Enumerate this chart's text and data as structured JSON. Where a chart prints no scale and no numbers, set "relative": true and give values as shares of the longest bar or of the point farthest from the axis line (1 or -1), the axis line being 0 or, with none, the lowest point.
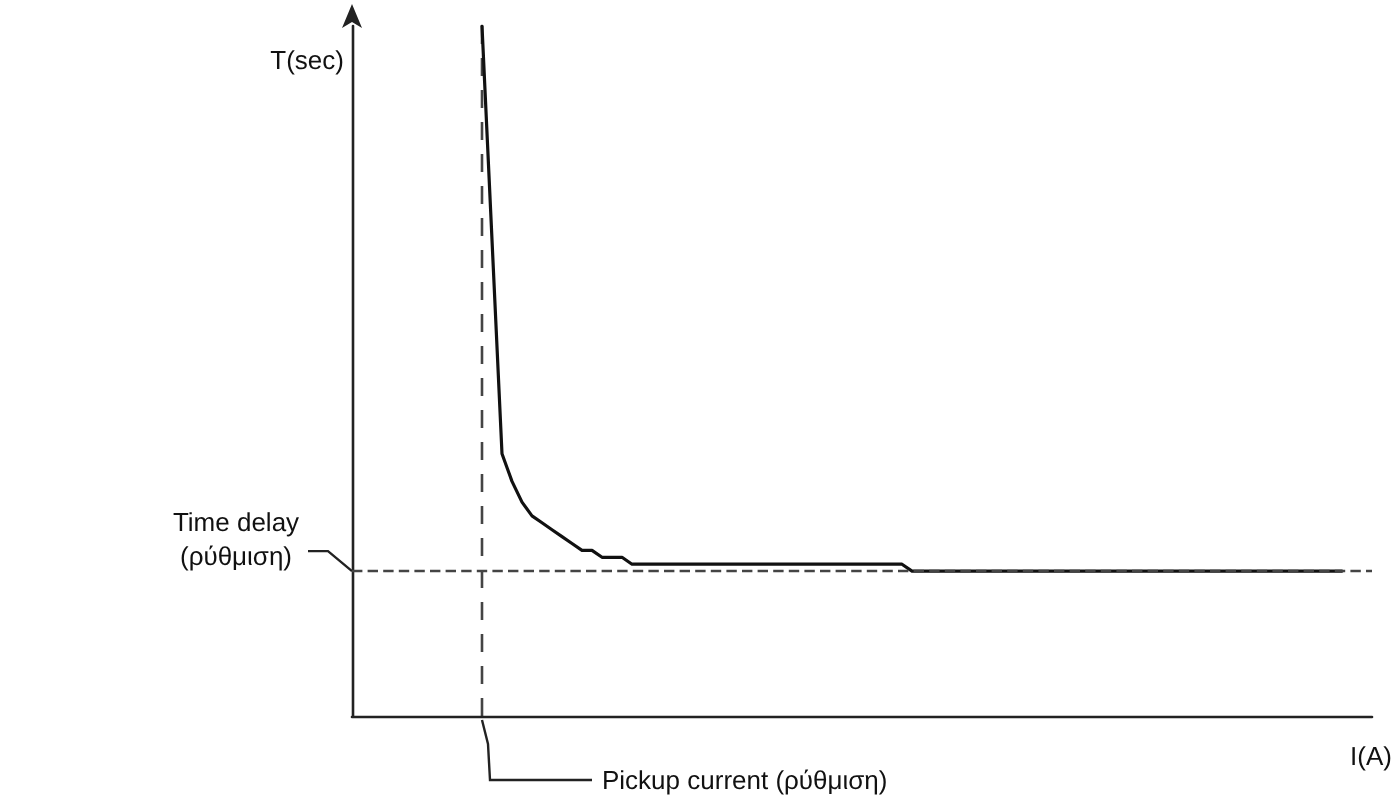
{
  "chart_data": {
    "type": "line",
    "relative": true,
    "xlabel": "I(A)",
    "ylabel": "T(sec)",
    "categories": [
      null,
      null,
      null,
      null,
      null,
      null,
      null,
      null,
      null,
      null,
      null,
      null,
      null,
      null,
      null,
      null,
      null,
      null,
      null,
      null,
      null,
      null,
      null,
      null,
      null,
      null,
      null,
      null,
      null,
      null,
      null,
      null,
      null,
      null,
      null,
      null,
      null,
      null,
      null,
      null,
      null,
      null,
      null,
      null,
      null,
      null,
      null,
      null,
      null,
      null,
      null,
      null,
      null,
      null,
      null,
      null,
      null,
      null,
      null,
      null,
      null,
      null,
      null,
      null,
      null,
      null,
      null,
      null,
      null,
      null,
      null,
      null,
      null,
      null,
      null,
      null,
      null,
      null,
      null,
      null,
      null,
      null,
      null,
      null,
      null,
      null,
      null,
      null,
      null,
      null,
      null,
      null,
      null,
      null,
      null,
      null,
      null,
      null,
      null,
      null,
      null,
      null,
      null
    ],
    "series": [
      {
        "color": "#111111",
        "values": [
          null,
          null,
          null,
          null,
          null,
          null,
          null,
          null,
          null,
          null,
          null,
          null,
          null,
          1.0,
          0.69,
          0.38,
          0.34,
          0.31,
          0.29,
          0.28,
          0.27,
          0.26,
          0.25,
          0.24,
          0.24,
          0.23,
          0.23,
          0.23,
          0.22,
          0.22,
          0.22,
          0.22,
          0.22,
          0.22,
          0.22,
          0.22,
          0.22,
          0.22,
          0.22,
          0.22,
          0.22,
          0.22,
          0.22,
          0.22,
          0.22,
          0.22,
          0.22,
          0.22,
          0.22,
          0.22,
          0.22,
          0.22,
          0.22,
          0.22,
          0.22,
          0.22,
          0.21,
          0.21,
          0.21,
          0.21,
          0.21,
          0.21,
          0.21,
          0.21,
          0.21,
          0.21,
          0.21,
          0.21,
          0.21,
          0.21,
          0.21,
          0.21,
          0.21,
          0.21,
          0.21,
          0.21,
          0.21,
          0.21,
          0.21,
          0.21,
          0.21,
          0.21,
          0.21,
          0.21,
          0.21,
          0.21,
          0.21,
          0.21,
          0.21,
          0.21,
          0.21,
          0.21,
          0.21,
          0.21,
          0.21,
          0.21,
          0.21,
          0.21,
          0.21,
          0.21,
          null,
          null,
          null
        ]
      }
    ],
    "ref_lines": [
      {
        "axis": "y",
        "value": 0.21,
        "label": "Time delay\n(ρύθμιση)",
        "color": "#444444",
        "line_style": "dashed"
      }
    ],
    "annotations": [
      "Pickup current (ρύθμιση)"
    ],
    "line_style": "solid",
    "grid": false
  }
}
